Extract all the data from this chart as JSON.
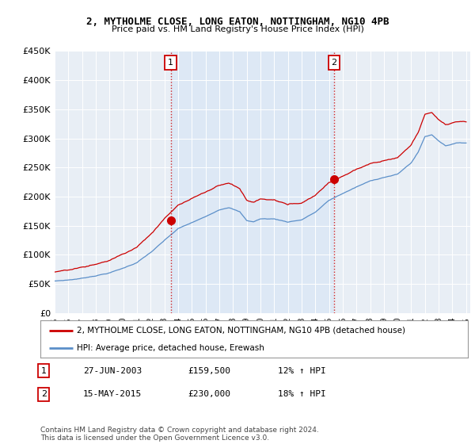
{
  "title1": "2, MYTHOLME CLOSE, LONG EATON, NOTTINGHAM, NG10 4PB",
  "title2": "Price paid vs. HM Land Registry's House Price Index (HPI)",
  "ylim": [
    0,
    450000
  ],
  "yticks": [
    0,
    50000,
    100000,
    150000,
    200000,
    250000,
    300000,
    350000,
    400000,
    450000
  ],
  "sale1_year": 2003,
  "sale1_month": 6,
  "sale1_price": 159500,
  "sale2_year": 2015,
  "sale2_month": 5,
  "sale2_price": 230000,
  "legend_red": "2, MYTHOLME CLOSE, LONG EATON, NOTTINGHAM, NG10 4PB (detached house)",
  "legend_blue": "HPI: Average price, detached house, Erewash",
  "table_row1": [
    "1",
    "27-JUN-2003",
    "£159,500",
    "12% ↑ HPI"
  ],
  "table_row2": [
    "2",
    "15-MAY-2015",
    "£230,000",
    "18% ↑ HPI"
  ],
  "footer": "Contains HM Land Registry data © Crown copyright and database right 2024.\nThis data is licensed under the Open Government Licence v3.0.",
  "red_color": "#cc0000",
  "blue_color": "#5b8fc9",
  "fill_color": "#dce8f5",
  "bg_color": "#e8eef5",
  "grid_color": "#ffffff"
}
